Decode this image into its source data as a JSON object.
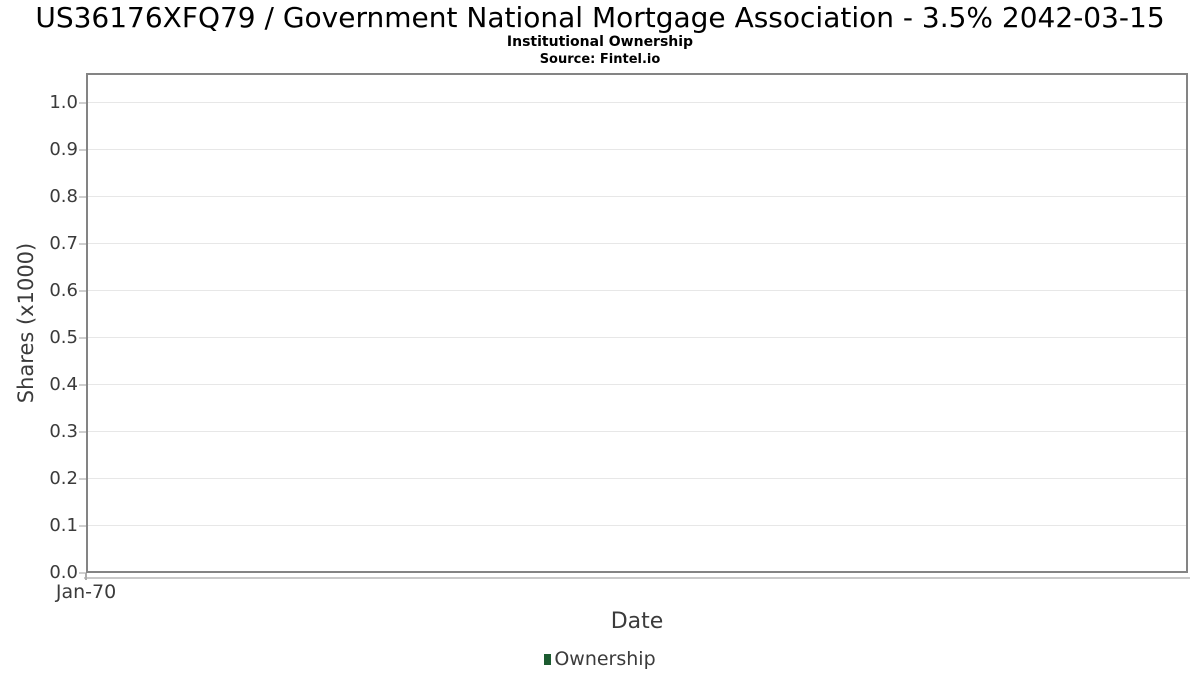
{
  "header": {
    "title": "US36176XFQ79 / Government National Mortgage Association - 3.5% 2042-03-15",
    "subtitle": "Institutional Ownership",
    "source": "Source: Fintel.io"
  },
  "chart_data": {
    "type": "line",
    "title": "US36176XFQ79 / Government National Mortgage Association - 3.5% 2042-03-15",
    "subtitle": "Institutional Ownership",
    "source": "Source: Fintel.io",
    "xlabel": "Date",
    "ylabel": "Shares (x1000)",
    "ylim": [
      0.0,
      1.0
    ],
    "yticks": [
      0.0,
      0.1,
      0.2,
      0.3,
      0.4,
      0.5,
      0.6,
      0.7,
      0.8,
      0.9,
      1.0
    ],
    "x_ticks": [
      {
        "label": "Jan-70",
        "position": 0
      }
    ],
    "grid": true,
    "series": [
      {
        "name": "Ownership",
        "color": "#1c5b30",
        "values": []
      }
    ],
    "legend": {
      "position": "bottom",
      "entries": [
        {
          "label": "Ownership",
          "color": "#1c5b30"
        }
      ]
    }
  },
  "colors": {
    "plot_border": "#848484",
    "gridline": "#e7e7e7",
    "axis_text": "#3b3b3b",
    "series_ownership": "#1c5b30"
  }
}
